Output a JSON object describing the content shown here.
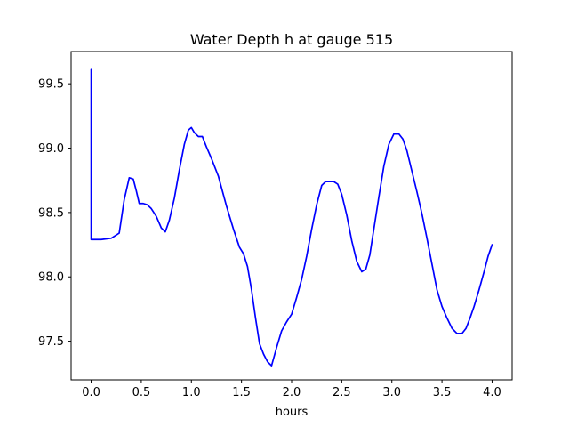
{
  "chart_data": {
    "type": "line",
    "title": "Water Depth h at gauge 515",
    "xlabel": "hours",
    "ylabel": "",
    "xlim": [
      -0.2,
      4.2
    ],
    "ylim": [
      97.2,
      99.75
    ],
    "xticks": [
      {
        "value": 0.0,
        "label": "0.0"
      },
      {
        "value": 0.5,
        "label": "0.5"
      },
      {
        "value": 1.0,
        "label": "1.0"
      },
      {
        "value": 1.5,
        "label": "1.5"
      },
      {
        "value": 2.0,
        "label": "2.0"
      },
      {
        "value": 2.5,
        "label": "2.5"
      },
      {
        "value": 3.0,
        "label": "3.0"
      },
      {
        "value": 3.5,
        "label": "3.5"
      },
      {
        "value": 4.0,
        "label": "4.0"
      }
    ],
    "yticks": [
      {
        "value": 97.5,
        "label": "97.5"
      },
      {
        "value": 98.0,
        "label": "98.0"
      },
      {
        "value": 98.5,
        "label": "98.5"
      },
      {
        "value": 99.0,
        "label": "99.0"
      },
      {
        "value": 99.5,
        "label": "99.5"
      }
    ],
    "grid": false,
    "legend": "none",
    "series": [
      {
        "color": "#0000ff",
        "x": [
          0.0,
          0.0,
          0.1,
          0.2,
          0.28,
          0.33,
          0.38,
          0.42,
          0.45,
          0.48,
          0.52,
          0.56,
          0.6,
          0.65,
          0.7,
          0.74,
          0.78,
          0.83,
          0.88,
          0.93,
          0.97,
          1.0,
          1.03,
          1.07,
          1.11,
          1.15,
          1.2,
          1.27,
          1.35,
          1.42,
          1.48,
          1.52,
          1.56,
          1.6,
          1.64,
          1.68,
          1.72,
          1.76,
          1.8,
          1.85,
          1.9,
          1.95,
          2.0,
          2.05,
          2.1,
          2.15,
          2.2,
          2.25,
          2.3,
          2.34,
          2.38,
          2.42,
          2.46,
          2.5,
          2.55,
          2.6,
          2.65,
          2.7,
          2.74,
          2.78,
          2.82,
          2.87,
          2.92,
          2.97,
          3.02,
          3.07,
          3.11,
          3.15,
          3.2,
          3.25,
          3.3,
          3.35,
          3.4,
          3.45,
          3.5,
          3.55,
          3.6,
          3.65,
          3.7,
          3.74,
          3.78,
          3.82,
          3.87,
          3.92,
          3.96,
          4.0
        ],
        "y": [
          99.61,
          98.29,
          98.29,
          98.3,
          98.34,
          98.6,
          98.77,
          98.76,
          98.67,
          98.57,
          98.57,
          98.56,
          98.53,
          98.47,
          98.38,
          98.35,
          98.44,
          98.61,
          98.83,
          99.03,
          99.14,
          99.16,
          99.12,
          99.09,
          99.09,
          99.01,
          98.92,
          98.78,
          98.55,
          98.37,
          98.23,
          98.18,
          98.08,
          97.9,
          97.68,
          97.48,
          97.4,
          97.34,
          97.31,
          97.45,
          97.58,
          97.65,
          97.71,
          97.84,
          97.98,
          98.16,
          98.37,
          98.56,
          98.71,
          98.74,
          98.74,
          98.74,
          98.72,
          98.64,
          98.48,
          98.28,
          98.12,
          98.04,
          98.06,
          98.17,
          98.37,
          98.62,
          98.86,
          99.03,
          99.11,
          99.11,
          99.07,
          98.98,
          98.82,
          98.66,
          98.49,
          98.3,
          98.1,
          97.9,
          97.77,
          97.68,
          97.6,
          97.56,
          97.56,
          97.6,
          97.68,
          97.77,
          97.9,
          98.04,
          98.16,
          98.25
        ]
      }
    ]
  }
}
